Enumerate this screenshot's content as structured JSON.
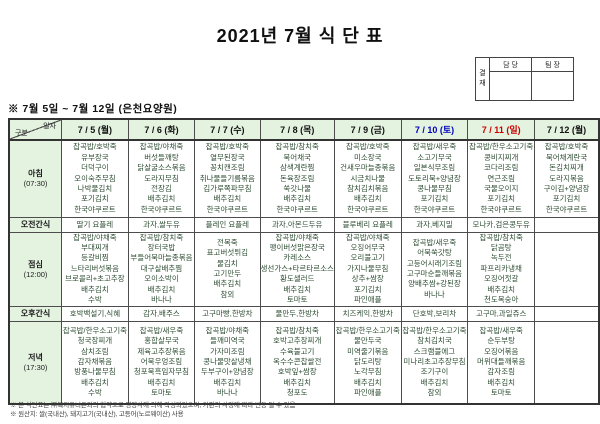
{
  "title": "2021년 7월 식 단 표",
  "subtitle": "※  7월 5일 ~ 7월 12일 (은천요양원)",
  "approval": {
    "stamp_label": "결\n재",
    "columns": [
      "담 당",
      "팀 장"
    ]
  },
  "table": {
    "corner": {
      "top": "일자",
      "bottom": "구분"
    },
    "dates": [
      {
        "label": "7 / 5 (월)",
        "color": "#111111"
      },
      {
        "label": "7 / 6 (화)",
        "color": "#111111"
      },
      {
        "label": "7 / 7 (수)",
        "color": "#111111"
      },
      {
        "label": "7 / 8 (목)",
        "color": "#111111"
      },
      {
        "label": "7 / 9 (금)",
        "color": "#111111"
      },
      {
        "label": "7 / 10 (토)",
        "color": "#0000bb"
      },
      {
        "label": "7 / 11 (일)",
        "color": "#cc0000"
      },
      {
        "label": "7 / 12 (월)",
        "color": "#111111"
      }
    ],
    "rows": [
      {
        "label": "아침",
        "time": "(07:30)",
        "type": "meal",
        "cells": [
          [
            "잡곡밥/호박죽",
            "유부장국",
            "더덕구이",
            "오이숙주무침",
            "나박물김치",
            "포기김치",
            "한국야쿠르트"
          ],
          [
            "잡곡밥/야채죽",
            "버섯들깨탕",
            "닭살굴소스볶음",
            "도라지무침",
            "전장김",
            "배추김치",
            "한국야쿠르트"
          ],
          [
            "잡곡밥/호박죽",
            "열무된장국",
            "꽁치캔조림",
            "취나물들기름볶음",
            "김가루쪽파무침",
            "배추김치",
            "한국야쿠르트"
          ],
          [
            "잡곡밥/참치죽",
            "북어채국",
            "삼색계란찜",
            "돈육장조림",
            "쑥갓나물",
            "배추김치",
            "한국야쿠르트"
          ],
          [
            "잡곡밥/호박죽",
            "미소장국",
            "건새우마늘종볶음",
            "시금치나물",
            "참치김치볶음",
            "배추김치",
            "한국야쿠르트"
          ],
          [
            "잡곡밥/새우죽",
            "소고기무국",
            "일본식무조림",
            "도토리묵+양념장",
            "콩나물무침",
            "포기김치",
            "한국야쿠르트"
          ],
          [
            "잡곡밥/한우소고기죽",
            "콩비지찌개",
            "코다리조림",
            "연근조림",
            "국물오이지",
            "포기김치",
            "한국야쿠르트"
          ],
          [
            "잡곡밥/호박죽",
            "북어채계란국",
            "돈김치찌개",
            "도라지볶음",
            "구이김+양념장",
            "포기김치",
            "한국야쿠르트"
          ]
        ]
      },
      {
        "label": "오전간식",
        "type": "snack",
        "cells": [
          "딸기 요플레",
          "과자,쌀두유",
          "플레인 요플레",
          "과자,아몬드두유",
          "블루베리 요플레",
          "과자,베지밀",
          "모나카,검은콩두유",
          ""
        ]
      },
      {
        "label": "점심",
        "time": "(12:00)",
        "type": "meal",
        "cells": [
          [
            "잡곡밥/야채죽",
            "부대찌개",
            "등갈비찜",
            "느타리버섯볶음",
            "브로콜리+초고추장",
            "배추김치",
            "수박"
          ],
          [
            "잡곡밥/참치죽",
            "장터국밥",
            "부들어묵마늘종볶음",
            "대구살배추찜",
            "오이소박이",
            "배추김치",
            "바나나"
          ],
          [
            "전복죽",
            "표고버섯튀김",
            "물김치",
            "고기만두",
            "배추김치",
            "참외"
          ],
          [
            "잡곡밥/야채죽",
            "팽이버섯맑은장국",
            "카레소스",
            "생선가스+타르타르소스",
            "황도샐러드",
            "배추김치",
            "토마토"
          ],
          [
            "잡곡밥/야채죽",
            "오징어무국",
            "오리불고기",
            "가지나물무침",
            "상추+쌈장",
            "포기김치",
            "파인애플"
          ],
          [
            "잡곡밥/새우죽",
            "어묵쑥갓탕",
            "고등어시래기조림",
            "고구마순들깨볶음",
            "양배추쌈+강된장",
            "바나나"
          ],
          [
            "잡곡밥/참치죽",
            "닭곰탕",
            "녹두전",
            "파프리카냉채",
            "오징어젓갈",
            "배추김치",
            "천도복숭아"
          ],
          []
        ]
      },
      {
        "label": "오후간식",
        "type": "snack",
        "cells": [
          "호박백설기,식혜",
          "감자,배주스",
          "고구마빵,한방차",
          "물만두,한방차",
          "치즈케익,한방차",
          "단호박,보리차",
          "고구마,과일쥬스",
          ""
        ]
      },
      {
        "label": "저녁",
        "time": "(17:30)",
        "type": "meal",
        "cells": [
          [
            "잡곡밥/한우소고기죽",
            "청국장찌개",
            "삼치조림",
            "감자채볶음",
            "방풍나물무침",
            "배추김치",
            "수박"
          ],
          [
            "잡곡밥/새우죽",
            "홍합살무국",
            "제육고추장볶음",
            "어묵우엉조림",
            "청포묵흑임자무침",
            "배추김치",
            "토마토"
          ],
          [
            "잡곡밥/야채죽",
            "들깨미역국",
            "가자미조림",
            "콩나물맛살냉채",
            "두부구이+양념장",
            "배추김치",
            "바나나"
          ],
          [
            "잡곡밥/참치죽",
            "호박고추장찌개",
            "수육불고기",
            "옥수수콘찹쌀전",
            "호박잎+쌈장",
            "배추김치",
            "청포도"
          ],
          [
            "잡곡밥/한우소고기죽",
            "물만두국",
            "미역줄기볶음",
            "닭도리탕",
            "노각무침",
            "배추김치",
            "파인애플"
          ],
          [
            "잡곡밥/한우소고기죽",
            "참치김치국",
            "스크램블에그",
            "미나리초고추장무침",
            "조기구이",
            "배추김치",
            "참외"
          ],
          [
            "잡곡밥/새우죽",
            "순두부탕",
            "오징어볶음",
            "머위대들깨볶음",
            "감자조림",
            "배추김치",
            "토마토"
          ],
          []
        ]
      }
    ]
  },
  "notes": [
    "※ 본 식단표는 ㈜복지유니온과의 협약으로 영양사에 의해 작성되었으며, 기관의 사정에 따라 변동 될 수 있음",
    "※ 원산지: 쌀(국내산), 돼지고기(국내산), 고등어(노르웨이산) 사용"
  ],
  "colors": {
    "header_bg": "#e4f2e0",
    "menu_text": "#2e4d33",
    "saturday": "#0000bb",
    "sunday": "#cc0000",
    "border": "#4d4d4d"
  }
}
